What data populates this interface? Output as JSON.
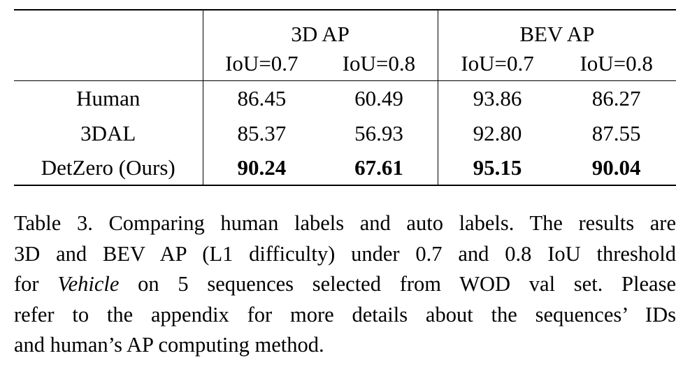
{
  "table": {
    "group_headers": [
      "3D AP",
      "BEV AP"
    ],
    "sub_headers": [
      "IoU=0.7",
      "IoU=0.8",
      "IoU=0.7",
      "IoU=0.8"
    ],
    "rows": [
      {
        "method": "Human",
        "values": [
          "86.45",
          "60.49",
          "93.86",
          "86.27"
        ],
        "bold": false
      },
      {
        "method": "3DAL",
        "values": [
          "85.37",
          "56.93",
          "92.80",
          "87.55"
        ],
        "bold": false
      },
      {
        "method": "DetZero (Ours)",
        "values": [
          "90.24",
          "67.61",
          "95.15",
          "90.04"
        ],
        "bold": true
      }
    ]
  },
  "caption": {
    "line1": "Table 3. Comparing human labels and auto labels. The results are",
    "line2": "3D and BEV AP (L1 difficulty) under 0.7 and 0.8 IoU threshold",
    "line3_prefix": "for ",
    "line3_italic": "Vehicle",
    "line3_suffix": " on 5 sequences selected from WOD val set.  Please",
    "line4": "refer to the appendix for more details about the sequences’ IDs",
    "line5": "and human’s AP computing method."
  }
}
